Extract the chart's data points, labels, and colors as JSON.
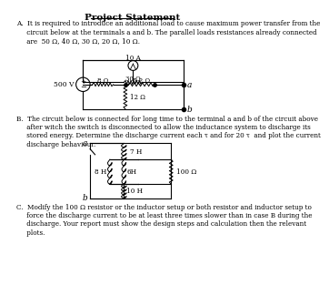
{
  "title": "Project Statement",
  "section_A_text": "A.  It is required to introduce an additional load to cause maximum power transfer from the\n     circuit below at the terminals a and b. The parallel loads resistances already connected\n     are  50 Ω, 40 Ω, 30 Ω, 20 Ω, 10 Ω.",
  "section_B_text": "B.  The circuit below is connected for long time to the terminal a and b of the circuit above\n     after witch the switch is disconnected to allow the inductance system to discharge its\n     stored energy. Determine the discharge current each τ and for 20 τ  and plot the current\n     discharge behaviour.",
  "section_C_text": "C.  Modify the 100 Ω resistor or the inductor setup or both resistor and inductor setup to\n     force the discharge current to be at least three times slower than in case B during the\n     discharge. Your report must show the design steps and calculation then the relevant\n     plots.",
  "bg_color": "#ffffff",
  "text_color": "#000000"
}
